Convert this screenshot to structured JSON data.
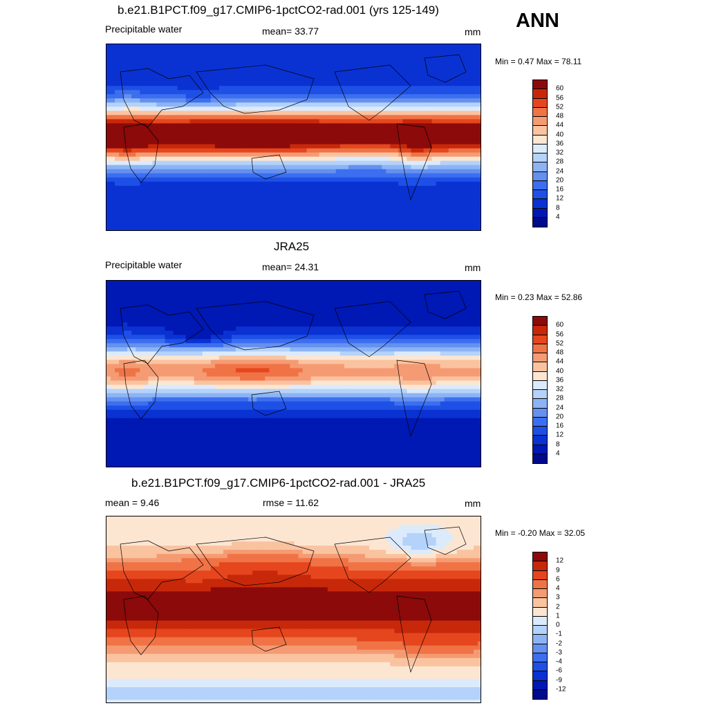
{
  "page": {
    "season": "ANN"
  },
  "chart_data": [
    {
      "type": "heatmap",
      "title": "b.e21.B1PCT.f09_g17.CMIP6-1pctCO2-rad.001 (yrs 125-149)",
      "left_label": "Precipitable water",
      "stat_label": "mean=  33.77",
      "units": "mm",
      "minmax": "Min =   0.47 Max =  78.11",
      "mean": 33.77,
      "min": 0.47,
      "max": 78.11,
      "levels": [
        4,
        8,
        12,
        16,
        20,
        24,
        28,
        32,
        36,
        40,
        44,
        48,
        52,
        56,
        60
      ],
      "colors": [
        "#000a8c",
        "#0018b4",
        "#0a32d2",
        "#1e50e6",
        "#3c6ef0",
        "#6490f0",
        "#8cb4f5",
        "#b4d2fa",
        "#dcebfc",
        "#fce6d2",
        "#fac3a0",
        "#f59b73",
        "#f07346",
        "#e6461e",
        "#c8280a",
        "#8c0a0a"
      ],
      "field": "model"
    },
    {
      "type": "heatmap",
      "title": "JRA25",
      "left_label": "Precipitable water",
      "stat_label": "mean=  24.31",
      "units": "mm",
      "minmax": "Min =   0.23 Max =  52.86",
      "mean": 24.31,
      "min": 0.23,
      "max": 52.86,
      "levels": [
        4,
        8,
        12,
        16,
        20,
        24,
        28,
        32,
        36,
        40,
        44,
        48,
        52,
        56,
        60
      ],
      "colors": [
        "#000a8c",
        "#0018b4",
        "#0a32d2",
        "#1e50e6",
        "#3c6ef0",
        "#6490f0",
        "#8cb4f5",
        "#b4d2fa",
        "#dcebfc",
        "#fce6d2",
        "#fac3a0",
        "#f59b73",
        "#f07346",
        "#e6461e",
        "#c8280a",
        "#8c0a0a"
      ],
      "field": "obs"
    },
    {
      "type": "heatmap",
      "title": "b.e21.B1PCT.f09_g17.CMIP6-1pctCO2-rad.001 - JRA25",
      "left_label": "mean =   9.46",
      "stat_label": "rmse =  11.62",
      "units": "mm",
      "minmax": "Min =  -0.20 Max =  32.05",
      "mean": 9.46,
      "rmse": 11.62,
      "min": -0.2,
      "max": 32.05,
      "levels": [
        -12,
        -9,
        -6,
        -4,
        -3,
        -2,
        -1,
        0,
        1,
        2,
        3,
        4,
        6,
        9,
        12
      ],
      "colors": [
        "#000a8c",
        "#0018b4",
        "#0a32d2",
        "#1e50e6",
        "#3c6ef0",
        "#6490f0",
        "#8cb4f5",
        "#b4d2fa",
        "#dcebfc",
        "#fce6d2",
        "#fac3a0",
        "#f59b73",
        "#f07346",
        "#e6461e",
        "#c8280a",
        "#8c0a0a"
      ],
      "field": "diff"
    }
  ]
}
